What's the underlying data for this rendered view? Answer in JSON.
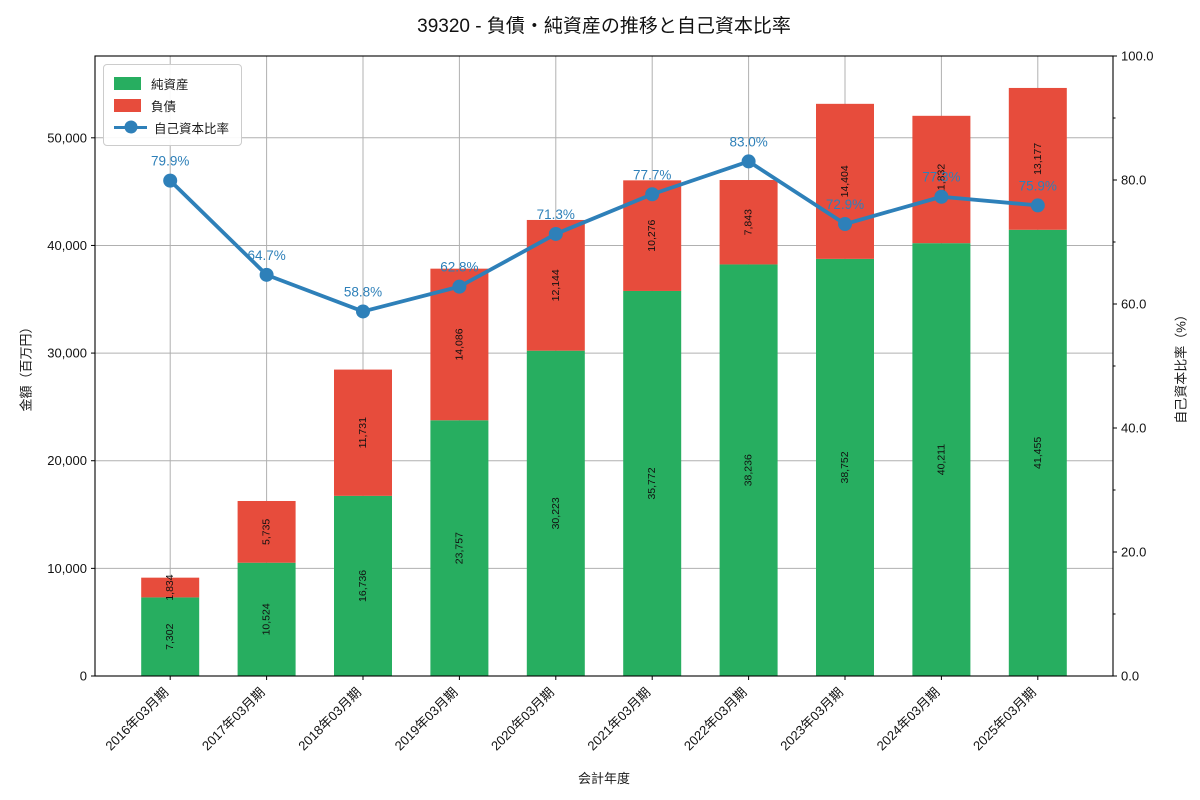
{
  "title": "39320 - 負債・純資産の推移と自己資本比率",
  "chart_data": {
    "type": "bar",
    "stacked": true,
    "overlay": "line",
    "grid": true,
    "legend_position": "upper left",
    "xlabel": "会計年度",
    "ylabel_left": "金額（百万円）",
    "ylabel_right": "自己資本比率（%）",
    "ylim_left": [
      0,
      57600
    ],
    "ylim_right": [
      0,
      100
    ],
    "yticks_left": [
      0,
      10000,
      20000,
      30000,
      40000,
      50000
    ],
    "yticks_right": [
      0.0,
      20.0,
      40.0,
      60.0,
      80.0,
      100.0
    ],
    "categories": [
      "2016年03月期",
      "2017年03月期",
      "2018年03月期",
      "2019年03月期",
      "2020年03月期",
      "2021年03月期",
      "2022年03月期",
      "2023年03月期",
      "2024年03月期",
      "2025年03月期"
    ],
    "series": [
      {
        "name": "純資産",
        "type": "bar",
        "color": "#27ae60",
        "values": [
          7302,
          10524,
          16736,
          23757,
          30223,
          35772,
          38236,
          38752,
          40211,
          41455
        ]
      },
      {
        "name": "負債",
        "type": "bar",
        "color": "#e74c3c",
        "values": [
          1834,
          5735,
          11731,
          14086,
          12144,
          10276,
          7843,
          14404,
          11832,
          13177
        ]
      },
      {
        "name": "自己資本比率",
        "type": "line",
        "axis": "right",
        "color": "#2e80b9",
        "values": [
          79.9,
          64.7,
          58.8,
          62.8,
          71.3,
          77.7,
          83.0,
          72.9,
          77.3,
          75.9
        ]
      }
    ],
    "colors": {
      "grid": "#b0b0b0",
      "spine": "#000000",
      "bar_value_text": "#111111"
    }
  }
}
